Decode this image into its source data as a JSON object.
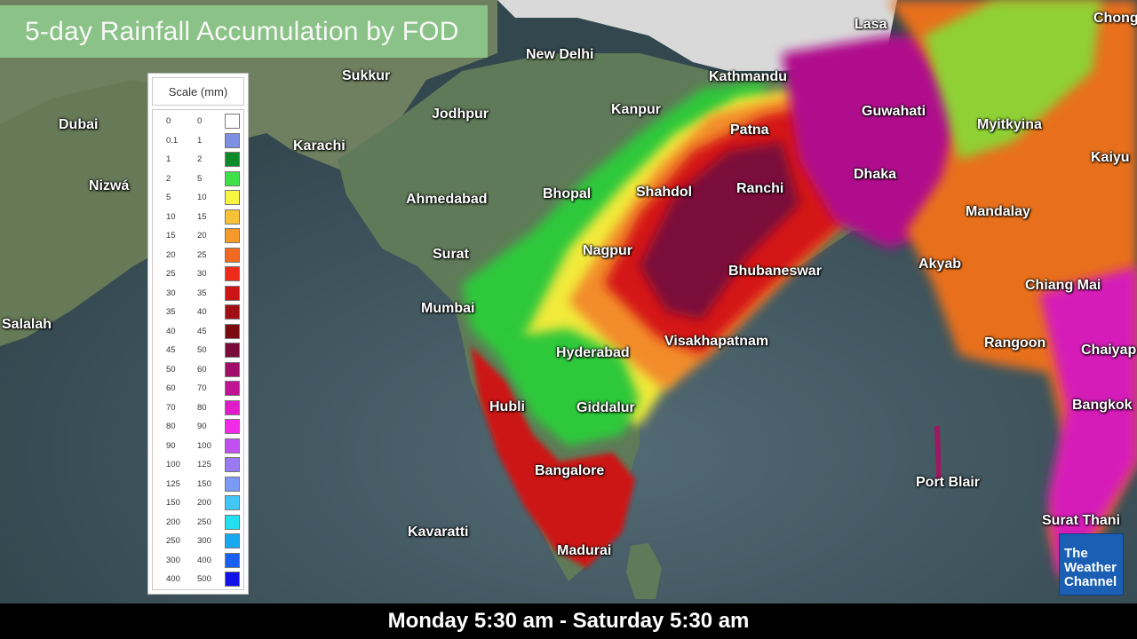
{
  "title": "5-day Rainfall Accumulation by FOD",
  "legend": {
    "header": "Scale (mm)",
    "rows": [
      {
        "lo": "0",
        "hi": "0",
        "color": "#ffffff"
      },
      {
        "lo": "0.1",
        "hi": "1",
        "color": "#7d8fe0"
      },
      {
        "lo": "1",
        "hi": "2",
        "color": "#0d8a2a"
      },
      {
        "lo": "2",
        "hi": "5",
        "color": "#3fe04a"
      },
      {
        "lo": "5",
        "hi": "10",
        "color": "#f5f542"
      },
      {
        "lo": "10",
        "hi": "15",
        "color": "#f7c23a"
      },
      {
        "lo": "15",
        "hi": "20",
        "color": "#f59a2b"
      },
      {
        "lo": "20",
        "hi": "25",
        "color": "#f26a22"
      },
      {
        "lo": "25",
        "hi": "30",
        "color": "#ee2a1a"
      },
      {
        "lo": "30",
        "hi": "35",
        "color": "#cc1414"
      },
      {
        "lo": "35",
        "hi": "40",
        "color": "#a00f14"
      },
      {
        "lo": "40",
        "hi": "45",
        "color": "#7a0b0e"
      },
      {
        "lo": "45",
        "hi": "50",
        "color": "#7a0a3a"
      },
      {
        "lo": "50",
        "hi": "60",
        "color": "#a0106a"
      },
      {
        "lo": "60",
        "hi": "70",
        "color": "#c01494"
      },
      {
        "lo": "70",
        "hi": "80",
        "color": "#e01cc8"
      },
      {
        "lo": "80",
        "hi": "90",
        "color": "#f02ae8"
      },
      {
        "lo": "90",
        "hi": "100",
        "color": "#c050f0"
      },
      {
        "lo": "100",
        "hi": "125",
        "color": "#9a7af0"
      },
      {
        "lo": "125",
        "hi": "150",
        "color": "#7a9af5"
      },
      {
        "lo": "150",
        "hi": "200",
        "color": "#42c6f5"
      },
      {
        "lo": "200",
        "hi": "250",
        "color": "#22e0f0"
      },
      {
        "lo": "250",
        "hi": "300",
        "color": "#18a8f0"
      },
      {
        "lo": "300",
        "hi": "400",
        "color": "#1a60f0"
      },
      {
        "lo": "400",
        "hi": "500",
        "color": "#1010e8"
      }
    ]
  },
  "cities": [
    "Lasa",
    "Chong",
    "New Delhi",
    "Sukkur",
    "Kathmandu",
    "Dubai",
    "Jodhpur",
    "Kanpur",
    "Guwahati",
    "Myitkyina",
    "Karachi",
    "Patna",
    "Kaiyu",
    "Nizwá",
    "Ahmedabad",
    "Bhopal",
    "Shahdol",
    "Ranchi",
    "Dhaka",
    "Mandalay",
    "Nagpur",
    "Surat",
    "Akyab",
    "Bhubaneswar",
    "Chiang Mai",
    "Mumbai",
    "Salalah",
    "Visakhapatnam",
    "Rangoon",
    "Chaiyap",
    "Hyderabad",
    "Hubli",
    "Giddalur",
    "Bangkok",
    "Bangalore",
    "Port Blair",
    "Kavaratti",
    "Surat Thani",
    "Madurai"
  ],
  "date_range": "Monday 5:30 am - Saturday 5:30 am",
  "logo": {
    "line1": "The",
    "line2": "Weather",
    "line3": "Channel",
    "color": "#1a5fb4"
  },
  "colors": {
    "sea": "#3d5560",
    "land_dry": "#5a7a55",
    "mountains": "#d8d8d8"
  }
}
